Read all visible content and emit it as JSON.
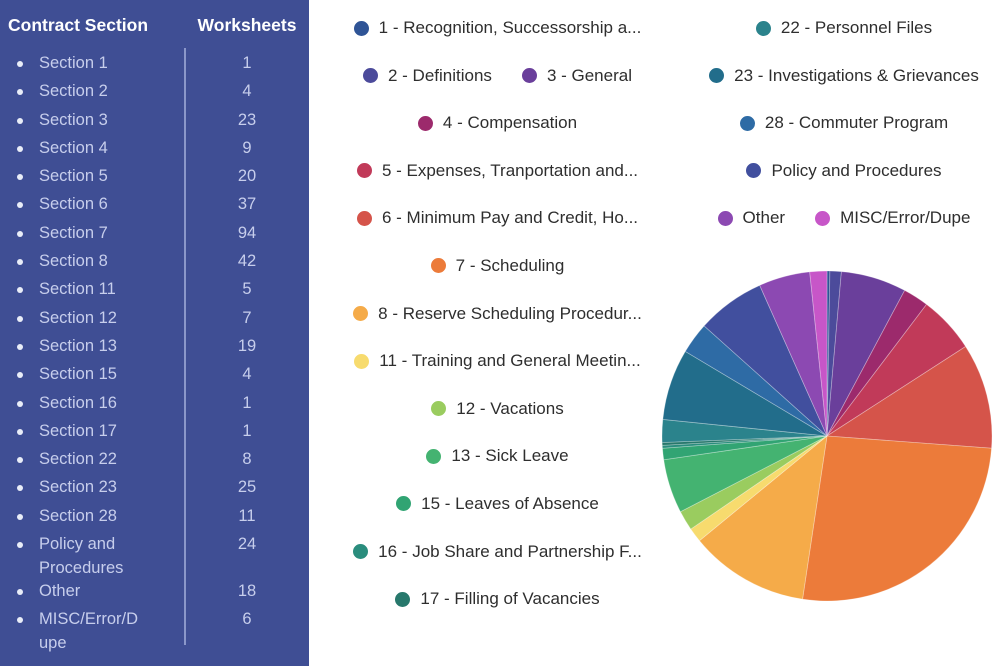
{
  "theme": {
    "background": "#FFFFFF",
    "panel_bg": "#3F4E94",
    "panel_divider": "#99A5D4",
    "panel_header_text": "#FFFFFF",
    "panel_row_text": "#C7CEEC",
    "bullet_color": "#E9EDF8",
    "legend_text": "#2E2E2E"
  },
  "icons": {
    "bullet": "circle",
    "legend_dot": "circle"
  },
  "table": {
    "header": {
      "section": "Contract Section",
      "worksheets": "Worksheets"
    },
    "rows": [
      {
        "section": "Section 1",
        "worksheets": 1
      },
      {
        "section": "Section 2",
        "worksheets": 4
      },
      {
        "section": "Section 3",
        "worksheets": 23
      },
      {
        "section": "Section 4",
        "worksheets": 9
      },
      {
        "section": "Section 5",
        "worksheets": 20
      },
      {
        "section": "Section 6",
        "worksheets": 37
      },
      {
        "section": "Section 7",
        "worksheets": 94
      },
      {
        "section": "Section 8",
        "worksheets": 42
      },
      {
        "section": "Section 11",
        "worksheets": 5
      },
      {
        "section": "Section 12",
        "worksheets": 7
      },
      {
        "section": "Section 13",
        "worksheets": 19
      },
      {
        "section": "Section 15",
        "worksheets": 4
      },
      {
        "section": "Section 16",
        "worksheets": 1
      },
      {
        "section": "Section 17",
        "worksheets": 1
      },
      {
        "section": "Section 22",
        "worksheets": 8
      },
      {
        "section": "Section 23",
        "worksheets": 25
      },
      {
        "section": "Section 28",
        "worksheets": 11
      },
      {
        "section": "Policy and Procedures",
        "worksheets": 24
      },
      {
        "section": "Other",
        "worksheets": 18
      },
      {
        "section": "MISC/Error/Dupe",
        "worksheets": 6
      }
    ]
  },
  "chart_data": {
    "type": "pie",
    "title": "",
    "start_angle_deg": -90,
    "direction": "clockwise",
    "legend_position": "top",
    "slices": [
      {
        "label": "1 - Recognition, Successorship a...",
        "value": 1,
        "color": "#2F5496"
      },
      {
        "label": "2 - Definitions",
        "value": 4,
        "color": "#4C4B9B"
      },
      {
        "label": "3 - General",
        "value": 23,
        "color": "#6A3F9B"
      },
      {
        "label": "4 - Compensation",
        "value": 9,
        "color": "#9C2A6C"
      },
      {
        "label": "5 - Expenses, Tranportation and...",
        "value": 20,
        "color": "#C13A59"
      },
      {
        "label": "6 - Minimum Pay and Credit, Ho...",
        "value": 37,
        "color": "#D5544A"
      },
      {
        "label": "7 - Scheduling",
        "value": 94,
        "color": "#EC7B3A"
      },
      {
        "label": "8 - Reserve Scheduling Procedur...",
        "value": 42,
        "color": "#F5AB49"
      },
      {
        "label": "11 - Training and General Meetin...",
        "value": 5,
        "color": "#F7DB6E"
      },
      {
        "label": "12 - Vacations",
        "value": 7,
        "color": "#9ACC5F"
      },
      {
        "label": "13 - Sick Leave",
        "value": 19,
        "color": "#44B371"
      },
      {
        "label": "15 - Leaves of Absence",
        "value": 4,
        "color": "#31A473"
      },
      {
        "label": "16 - Job Share and Partnership F...",
        "value": 1,
        "color": "#2A8D7D"
      },
      {
        "label": "17 - Filling of Vacancies",
        "value": 1,
        "color": "#27786C"
      },
      {
        "label": "22 - Personnel Files",
        "value": 8,
        "color": "#2B838C"
      },
      {
        "label": "23 - Investigations & Grievances",
        "value": 25,
        "color": "#226D8B"
      },
      {
        "label": "28 - Commuter Program",
        "value": 11,
        "color": "#2E6BA5"
      },
      {
        "label": "Policy and Procedures",
        "value": 24,
        "color": "#414F9E"
      },
      {
        "label": "Other",
        "value": 18,
        "color": "#8C49B2"
      },
      {
        "label": "MISC/Error/Dupe",
        "value": 6,
        "color": "#C756C8"
      }
    ]
  },
  "legend": {
    "left_rows": [
      [
        0
      ],
      [
        1,
        2
      ],
      [
        3
      ],
      [
        4
      ],
      [
        5
      ],
      [
        6
      ],
      [
        7
      ],
      [
        8
      ],
      [
        9
      ],
      [
        10
      ],
      [
        11
      ],
      [
        12
      ],
      [
        13
      ]
    ],
    "right_rows": [
      [
        14
      ],
      [
        15
      ],
      [
        16
      ],
      [
        17
      ],
      [
        18,
        19
      ]
    ]
  }
}
